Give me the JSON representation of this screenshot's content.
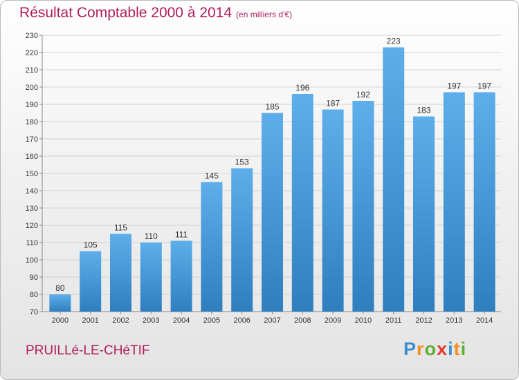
{
  "header": {
    "title": "Résultat Comptable 2000 à 2014",
    "subtitle": "(en milliers d'€)"
  },
  "footer": {
    "commune": "PRUILLé-LE-CHéTIF",
    "brand": "Proxiti",
    "brand_letters": [
      {
        "ch": "P",
        "color": "#3b8fd1"
      },
      {
        "ch": "r",
        "color": "#f28e1c"
      },
      {
        "ch": "o",
        "color": "#5fae34"
      },
      {
        "ch": "x",
        "color": "#e63a2e"
      },
      {
        "ch": "i",
        "color": "#3b8fd1"
      },
      {
        "ch": "t",
        "color": "#f28e1c"
      },
      {
        "ch": "i",
        "color": "#5fae34"
      }
    ]
  },
  "chart_data": {
    "type": "bar",
    "categories": [
      "2000",
      "2001",
      "2002",
      "2003",
      "2004",
      "2005",
      "2006",
      "2007",
      "2008",
      "2009",
      "2010",
      "2011",
      "2012",
      "2013",
      "2014"
    ],
    "values": [
      80,
      105,
      115,
      110,
      111,
      145,
      153,
      185,
      196,
      187,
      192,
      223,
      183,
      197,
      197
    ],
    "ylim": [
      70,
      230
    ],
    "yticks": [
      70,
      80,
      90,
      100,
      110,
      120,
      130,
      140,
      150,
      160,
      170,
      180,
      190,
      200,
      210,
      220,
      230
    ],
    "grid": true,
    "bar_color_top": "#5daeea",
    "bar_color_bottom": "#2f7fc0",
    "title_color": "#b01c5c"
  }
}
